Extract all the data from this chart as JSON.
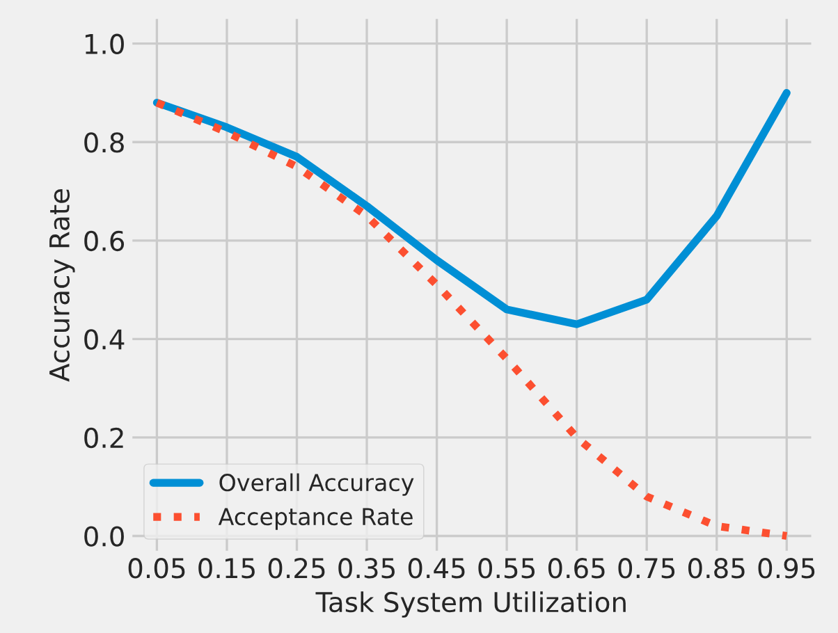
{
  "chart_data": {
    "type": "line",
    "xlabel": "Task System Utilization",
    "ylabel": "Accuracy Rate",
    "x": [
      0.05,
      0.15,
      0.25,
      0.35,
      0.45,
      0.55,
      0.65,
      0.75,
      0.85,
      0.95
    ],
    "series": [
      {
        "name": "Overall Accuracy",
        "color": "#008fd5",
        "line_style": "solid",
        "values": [
          0.88,
          0.83,
          0.77,
          0.67,
          0.56,
          0.46,
          0.43,
          0.48,
          0.65,
          0.9
        ]
      },
      {
        "name": "Acceptance Rate",
        "color": "#fc4f30",
        "line_style": "dotted",
        "values": [
          0.88,
          0.82,
          0.75,
          0.65,
          0.51,
          0.36,
          0.2,
          0.08,
          0.02,
          0.0
        ]
      }
    ],
    "xlim": [
      0.015,
      0.985
    ],
    "xticks": [
      0.05,
      0.15,
      0.25,
      0.35,
      0.45,
      0.55,
      0.65,
      0.75,
      0.85,
      0.95
    ],
    "ylim": [
      -0.03,
      1.05
    ],
    "yticks": [
      {
        "value": 0,
        "label": "0.0"
      },
      0.2,
      0.4,
      0.6,
      0.8,
      {
        "value": 1,
        "label": "1.0"
      }
    ],
    "grid": true,
    "legend": "bottom left"
  }
}
